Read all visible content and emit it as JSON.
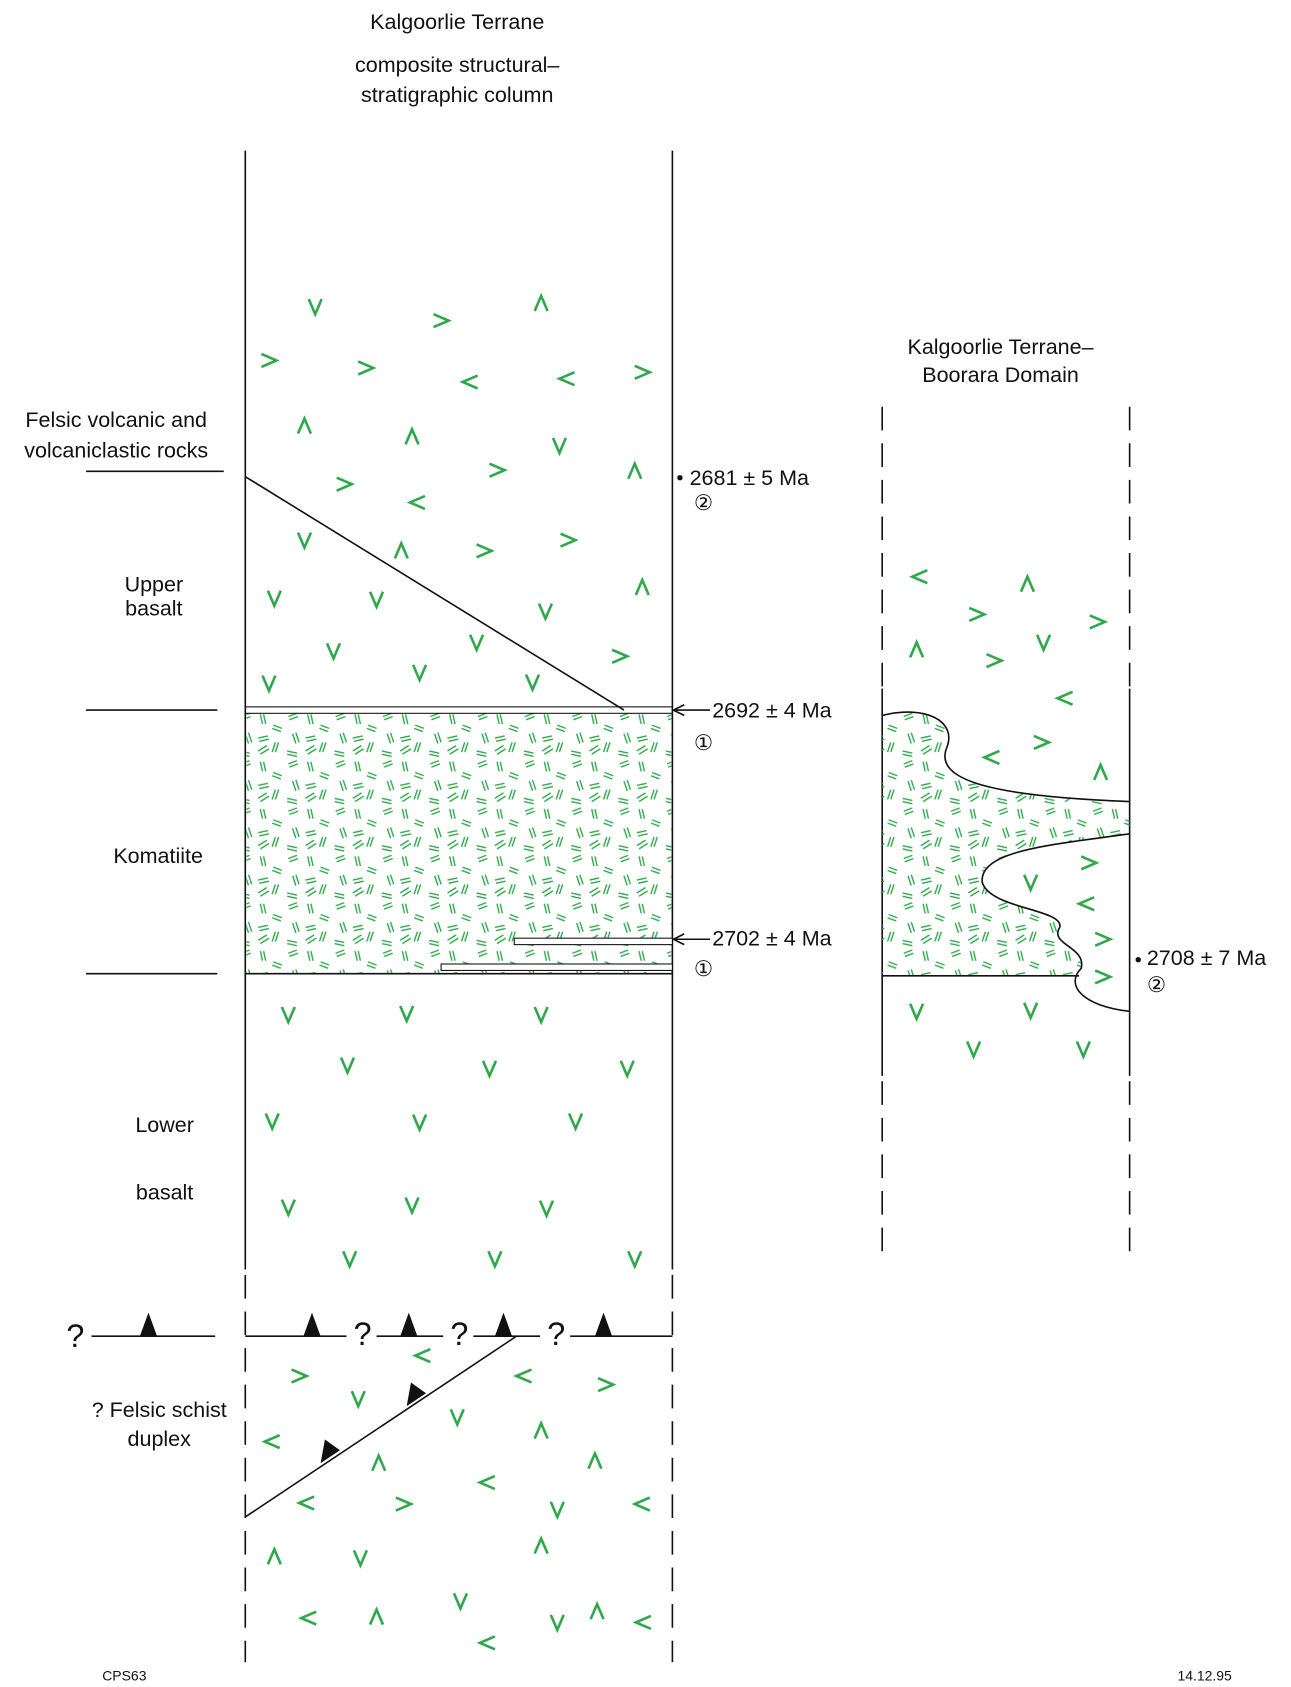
{
  "header": {
    "title": "Kalgoorlie Terrane",
    "subtitle_lines": [
      "composite structural–",
      "stratigraphic column"
    ]
  },
  "side_column": {
    "title_lines": [
      "Kalgoorlie Terrane–",
      "Boorara Domain"
    ]
  },
  "unit_labels": [
    [
      "Felsic volcanic and",
      "volcaniclastic rocks"
    ],
    [
      "Upper",
      "basalt"
    ],
    [
      "Komatiite"
    ],
    [
      "Lower",
      "basalt"
    ],
    [
      "? Felsic schist",
      "duplex"
    ]
  ],
  "ages": [
    {
      "label": "2681 ± 5 Ma",
      "ref": "②"
    },
    {
      "label": "2692 ± 4 Ma",
      "ref": "①"
    },
    {
      "label": "2702 ± 4 Ma",
      "ref": "①"
    },
    {
      "label": "2708 ± 7 Ma",
      "ref": "②"
    }
  ],
  "question_marks": [
    "?",
    "?",
    "?",
    "?"
  ],
  "footer": {
    "left": "CPS63",
    "right": "14.12.95"
  }
}
